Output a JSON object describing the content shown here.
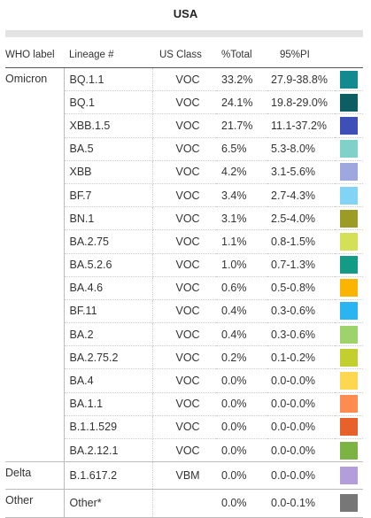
{
  "title": "USA",
  "headers": {
    "who": "WHO label",
    "lineage": "Lineage #",
    "us_class": "US Class",
    "total": "%Total",
    "pi": "95%PI"
  },
  "chart_data": {
    "type": "table",
    "title": "USA",
    "columns": [
      "WHO label",
      "Lineage #",
      "US Class",
      "%Total",
      "95%PI"
    ],
    "groups": [
      {
        "who_label": "Omicron",
        "rows": [
          {
            "lineage": "BQ.1.1",
            "us_class": "VOC",
            "total": "33.2%",
            "pi": "27.9-38.8%",
            "color": "#138a8f"
          },
          {
            "lineage": "BQ.1",
            "us_class": "VOC",
            "total": "24.1%",
            "pi": "19.8-29.0%",
            "color": "#0d5e62"
          },
          {
            "lineage": "XBB.1.5",
            "us_class": "VOC",
            "total": "21.7%",
            "pi": "11.1-37.2%",
            "color": "#3f4fb8"
          },
          {
            "lineage": "BA.5",
            "us_class": "VOC",
            "total": "6.5%",
            "pi": "5.3-8.0%",
            "color": "#7fd1c9"
          },
          {
            "lineage": "XBB",
            "us_class": "VOC",
            "total": "4.2%",
            "pi": "3.1-5.6%",
            "color": "#9fa8de"
          },
          {
            "lineage": "BF.7",
            "us_class": "VOC",
            "total": "3.4%",
            "pi": "2.7-4.3%",
            "color": "#82d4f6"
          },
          {
            "lineage": "BN.1",
            "us_class": "VOC",
            "total": "3.1%",
            "pi": "2.5-4.0%",
            "color": "#9c9b26"
          },
          {
            "lineage": "BA.2.75",
            "us_class": "VOC",
            "total": "1.1%",
            "pi": "0.8-1.5%",
            "color": "#d4e157"
          },
          {
            "lineage": "BA.5.2.6",
            "us_class": "VOC",
            "total": "1.0%",
            "pi": "0.7-1.3%",
            "color": "#139b85"
          },
          {
            "lineage": "BA.4.6",
            "us_class": "VOC",
            "total": "0.6%",
            "pi": "0.5-0.8%",
            "color": "#fbb500"
          },
          {
            "lineage": "BF.11",
            "us_class": "VOC",
            "total": "0.4%",
            "pi": "0.3-0.6%",
            "color": "#2ab4f2"
          },
          {
            "lineage": "BA.2",
            "us_class": "VOC",
            "total": "0.4%",
            "pi": "0.3-0.6%",
            "color": "#9ed26b"
          },
          {
            "lineage": "BA.2.75.2",
            "us_class": "VOC",
            "total": "0.2%",
            "pi": "0.1-0.2%",
            "color": "#c3cf2e"
          },
          {
            "lineage": "BA.4",
            "us_class": "VOC",
            "total": "0.0%",
            "pi": "0.0-0.0%",
            "color": "#fdd74f"
          },
          {
            "lineage": "BA.1.1",
            "us_class": "VOC",
            "total": "0.0%",
            "pi": "0.0-0.0%",
            "color": "#fe8b4f"
          },
          {
            "lineage": "B.1.1.529",
            "us_class": "VOC",
            "total": "0.0%",
            "pi": "0.0-0.0%",
            "color": "#e8612a"
          },
          {
            "lineage": "BA.2.12.1",
            "us_class": "VOC",
            "total": "0.0%",
            "pi": "0.0-0.0%",
            "color": "#7cb342"
          }
        ]
      },
      {
        "who_label": "Delta",
        "rows": [
          {
            "lineage": "B.1.617.2",
            "us_class": "VBM",
            "total": "0.0%",
            "pi": "0.0-0.0%",
            "color": "#b39ddb"
          }
        ]
      },
      {
        "who_label": "Other",
        "rows": [
          {
            "lineage": "Other*",
            "us_class": "",
            "total": "0.0%",
            "pi": "0.0-0.1%",
            "color": "#777777"
          }
        ]
      }
    ]
  }
}
